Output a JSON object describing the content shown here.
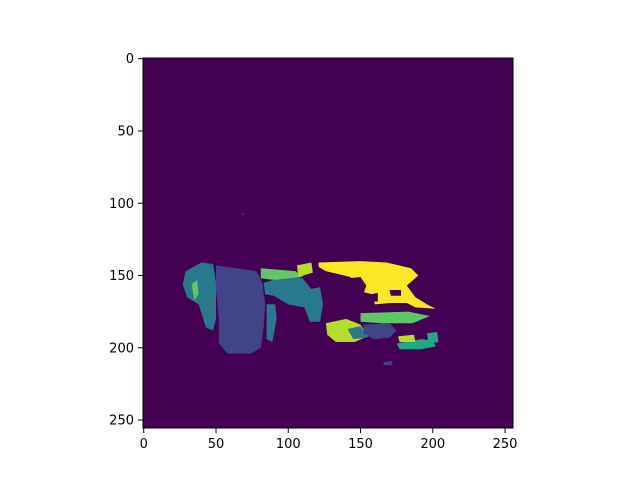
{
  "chart_data": {
    "type": "heatmap",
    "title": "",
    "xlabel": "",
    "ylabel": "",
    "xlim": [
      0,
      255
    ],
    "ylim": [
      255,
      0
    ],
    "x_ticks": [
      0,
      50,
      100,
      150,
      200,
      250
    ],
    "y_ticks": [
      0,
      50,
      100,
      150,
      200,
      250
    ],
    "colormap": "viridis",
    "background_color": "#440154",
    "grid": false,
    "regions": [
      {
        "label": "dark-indigo segment",
        "color": "#414487",
        "polygon": [
          [
            50,
            143
          ],
          [
            78,
            147
          ],
          [
            82,
            155
          ],
          [
            84,
            170
          ],
          [
            83,
            186
          ],
          [
            81,
            200
          ],
          [
            74,
            204
          ],
          [
            58,
            204
          ],
          [
            52,
            197
          ],
          [
            52,
            180
          ],
          [
            50,
            160
          ]
        ]
      },
      {
        "label": "teal segment left",
        "color": "#2a788e",
        "polygon": [
          [
            29,
            147
          ],
          [
            40,
            141
          ],
          [
            48,
            142
          ],
          [
            50,
            155
          ],
          [
            50,
            180
          ],
          [
            48,
            188
          ],
          [
            43,
            186
          ],
          [
            38,
            170
          ],
          [
            30,
            165
          ],
          [
            27,
            156
          ]
        ]
      },
      {
        "label": "green strip left",
        "color": "#5ec962",
        "polygon": [
          [
            33,
            156
          ],
          [
            37,
            153
          ],
          [
            38,
            163
          ],
          [
            35,
            167
          ]
        ]
      },
      {
        "label": "teal segment center",
        "color": "#2a788e",
        "polygon": [
          [
            83,
            155
          ],
          [
            97,
            151
          ],
          [
            110,
            152
          ],
          [
            118,
            162
          ],
          [
            111,
            172
          ],
          [
            100,
            170
          ],
          [
            90,
            164
          ],
          [
            84,
            163
          ]
        ]
      },
      {
        "label": "teal strip",
        "color": "#2a788e",
        "polygon": [
          [
            85,
            170
          ],
          [
            91,
            170
          ],
          [
            92,
            180
          ],
          [
            89,
            196
          ],
          [
            85,
            194
          ]
        ]
      },
      {
        "label": "teal segment right",
        "color": "#2a788e",
        "polygon": [
          [
            113,
            160
          ],
          [
            122,
            158
          ],
          [
            124,
            170
          ],
          [
            122,
            182
          ],
          [
            115,
            182
          ],
          [
            111,
            172
          ]
        ]
      },
      {
        "label": "green band top",
        "color": "#5ec962",
        "polygon": [
          [
            81,
            145
          ],
          [
            105,
            147
          ],
          [
            110,
            151
          ],
          [
            90,
            153
          ],
          [
            81,
            152
          ]
        ]
      },
      {
        "label": "light-green patch",
        "color": "#b5de2b",
        "polygon": [
          [
            106,
            143
          ],
          [
            116,
            141
          ],
          [
            117,
            148
          ],
          [
            107,
            151
          ]
        ]
      },
      {
        "label": "yellow segment",
        "color": "#fde725",
        "polygon": [
          [
            121,
            141
          ],
          [
            150,
            140
          ],
          [
            168,
            141
          ],
          [
            185,
            145
          ],
          [
            190,
            150
          ],
          [
            182,
            157
          ],
          [
            188,
            165
          ],
          [
            196,
            170
          ],
          [
            202,
            173
          ],
          [
            188,
            172
          ],
          [
            182,
            169
          ],
          [
            170,
            169
          ],
          [
            160,
            170
          ],
          [
            158,
            163
          ],
          [
            146,
            160
          ],
          [
            143,
            151
          ],
          [
            126,
            147
          ],
          [
            121,
            144
          ]
        ]
      },
      {
        "label": "dark cutout 1",
        "color": "#440154",
        "polygon": [
          [
            141,
            152
          ],
          [
            150,
            151
          ],
          [
            154,
            157
          ],
          [
            152,
            163
          ],
          [
            143,
            162
          ]
        ]
      },
      {
        "label": "dark cutout 2",
        "color": "#440154",
        "polygon": [
          [
            170,
            160
          ],
          [
            178,
            160
          ],
          [
            178,
            164
          ],
          [
            171,
            164
          ]
        ]
      },
      {
        "label": "dark cutout 3",
        "color": "#440154",
        "polygon": [
          [
            157,
            163
          ],
          [
            162,
            162
          ],
          [
            162,
            168
          ],
          [
            157,
            168
          ]
        ]
      },
      {
        "label": "green strip lower",
        "color": "#5ec962",
        "polygon": [
          [
            150,
            176
          ],
          [
            183,
            175
          ],
          [
            198,
            178
          ],
          [
            186,
            183
          ],
          [
            165,
            183
          ],
          [
            150,
            182
          ]
        ]
      },
      {
        "label": "light-green lower",
        "color": "#b5de2b",
        "polygon": [
          [
            126,
            183
          ],
          [
            140,
            180
          ],
          [
            150,
            184
          ],
          [
            155,
            192
          ],
          [
            146,
            196
          ],
          [
            133,
            196
          ],
          [
            127,
            191
          ]
        ]
      },
      {
        "label": "teal lower",
        "color": "#2a788e",
        "polygon": [
          [
            141,
            187
          ],
          [
            150,
            185
          ],
          [
            155,
            193
          ],
          [
            145,
            194
          ]
        ]
      },
      {
        "label": "indigo lower",
        "color": "#414487",
        "polygon": [
          [
            152,
            184
          ],
          [
            170,
            183
          ],
          [
            175,
            188
          ],
          [
            170,
            193
          ],
          [
            159,
            194
          ],
          [
            152,
            190
          ]
        ]
      },
      {
        "label": "green-right patch",
        "color": "#22a884",
        "polygon": [
          [
            175,
            197
          ],
          [
            192,
            194
          ],
          [
            200,
            195
          ],
          [
            202,
            199
          ],
          [
            192,
            201
          ],
          [
            177,
            201
          ]
        ]
      },
      {
        "label": "lime-right patch",
        "color": "#b5de2b",
        "polygon": [
          [
            176,
            192
          ],
          [
            187,
            191
          ],
          [
            188,
            196
          ],
          [
            177,
            196
          ]
        ]
      },
      {
        "label": "teal-right patch",
        "color": "#22a884",
        "polygon": [
          [
            196,
            190
          ],
          [
            203,
            189
          ],
          [
            204,
            196
          ],
          [
            197,
            197
          ]
        ]
      },
      {
        "label": "small indigo bottom",
        "color": "#414487",
        "polygon": [
          [
            166,
            210
          ],
          [
            172,
            209
          ],
          [
            172,
            212
          ],
          [
            166,
            212
          ]
        ]
      },
      {
        "label": "tiny speck",
        "color": "#2a788e",
        "polygon": [
          [
            68,
            107
          ],
          [
            69,
            107
          ],
          [
            69,
            108
          ],
          [
            68,
            108
          ]
        ]
      }
    ]
  }
}
